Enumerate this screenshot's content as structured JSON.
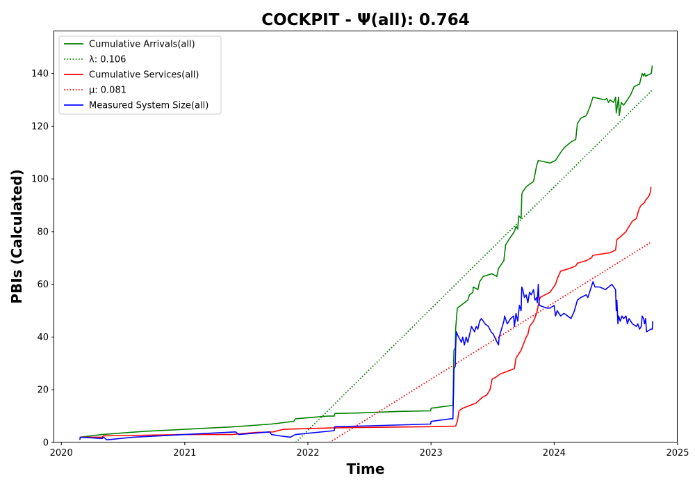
{
  "chart_data": {
    "type": "line",
    "title": "COCKPIT -  Ψ(all): 0.764",
    "xlabel": "Time",
    "ylabel": "PBIs (Calculated)",
    "xlim": [
      "2019-12-11",
      "2025-01-01"
    ],
    "ylim": [
      0,
      156
    ],
    "x_ticks": [
      "2020",
      "2021",
      "2022",
      "2023",
      "2024",
      "2025"
    ],
    "x_tick_dates": [
      "2020-01-01",
      "2021-01-01",
      "2022-01-01",
      "2023-01-01",
      "2024-01-01",
      "2025-01-01"
    ],
    "y_ticks": [
      0,
      20,
      40,
      60,
      80,
      100,
      120,
      140
    ],
    "grid": false,
    "legend_position": "upper-left",
    "series": [
      {
        "name": "Cumulative Arrivals(all)",
        "color": "#008000",
        "style": "solid",
        "points": [
          [
            "2020-02-25",
            2
          ],
          [
            "2020-05-01",
            3
          ],
          [
            "2020-09-01",
            4.2
          ],
          [
            "2021-01-01",
            5
          ],
          [
            "2021-06-01",
            6
          ],
          [
            "2021-09-15",
            7
          ],
          [
            "2021-11-20",
            8
          ],
          [
            "2021-11-25",
            9
          ],
          [
            "2022-03-01",
            10
          ],
          [
            "2022-03-20",
            10
          ],
          [
            "2022-03-22",
            11
          ],
          [
            "2022-06-01",
            11.2
          ],
          [
            "2022-10-01",
            11.8
          ],
          [
            "2022-12-31",
            12
          ],
          [
            "2023-01-01",
            13
          ],
          [
            "2023-03-01",
            14
          ],
          [
            "2023-03-07",
            14
          ],
          [
            "2023-03-08",
            20
          ],
          [
            "2023-03-09",
            30
          ],
          [
            "2023-03-10",
            35
          ],
          [
            "2023-03-14",
            36
          ],
          [
            "2023-03-15",
            43
          ],
          [
            "2023-03-20",
            51
          ],
          [
            "2023-04-10",
            53
          ],
          [
            "2023-04-20",
            54
          ],
          [
            "2023-04-25",
            56
          ],
          [
            "2023-05-05",
            57
          ],
          [
            "2023-05-06",
            59
          ],
          [
            "2023-05-20",
            58
          ],
          [
            "2023-05-25",
            61
          ],
          [
            "2023-06-05",
            63
          ],
          [
            "2023-06-30",
            64
          ],
          [
            "2023-07-15",
            63
          ],
          [
            "2023-07-20",
            66
          ],
          [
            "2023-08-05",
            69
          ],
          [
            "2023-08-10",
            75
          ],
          [
            "2023-08-20",
            77
          ],
          [
            "2023-09-05",
            80
          ],
          [
            "2023-09-10",
            82
          ],
          [
            "2023-09-15",
            81
          ],
          [
            "2023-09-18",
            86
          ],
          [
            "2023-09-25",
            85
          ],
          [
            "2023-09-27",
            94
          ],
          [
            "2023-09-29",
            95
          ],
          [
            "2023-10-10",
            97
          ],
          [
            "2023-10-20",
            98
          ],
          [
            "2023-11-01",
            99
          ],
          [
            "2023-11-10",
            105
          ],
          [
            "2023-11-15",
            107
          ],
          [
            "2023-12-20",
            106
          ],
          [
            "2024-01-05",
            107
          ],
          [
            "2024-01-20",
            110
          ],
          [
            "2024-02-01",
            112
          ],
          [
            "2024-02-20",
            114
          ],
          [
            "2024-03-05",
            115
          ],
          [
            "2024-03-10",
            121
          ],
          [
            "2024-03-20",
            123
          ],
          [
            "2024-04-05",
            124
          ],
          [
            "2024-04-15",
            127
          ],
          [
            "2024-04-25",
            131
          ],
          [
            "2024-05-30",
            130
          ],
          [
            "2024-06-05",
            130.5
          ],
          [
            "2024-06-10",
            129
          ],
          [
            "2024-06-15",
            130
          ],
          [
            "2024-06-25",
            129
          ],
          [
            "2024-07-01",
            131
          ],
          [
            "2024-07-03",
            125
          ],
          [
            "2024-07-10",
            131
          ],
          [
            "2024-07-12",
            124
          ],
          [
            "2024-07-18",
            129
          ],
          [
            "2024-07-25",
            128
          ],
          [
            "2024-08-05",
            130
          ],
          [
            "2024-08-15",
            132
          ],
          [
            "2024-08-25",
            135
          ],
          [
            "2024-09-10",
            136
          ],
          [
            "2024-09-18",
            140
          ],
          [
            "2024-09-22",
            139
          ],
          [
            "2024-09-25",
            140
          ],
          [
            "2024-09-28",
            139
          ],
          [
            "2024-10-15",
            140
          ],
          [
            "2024-10-18",
            143
          ]
        ]
      },
      {
        "name": "λ: 0.106",
        "color": "#008000",
        "style": "dotted",
        "points": [
          [
            "2021-11-26",
            0
          ],
          [
            "2024-10-20",
            134
          ]
        ]
      },
      {
        "name": "Cumulative Services(all)",
        "color": "#ff0000",
        "style": "solid",
        "points": [
          [
            "2020-02-25",
            2
          ],
          [
            "2020-05-01",
            2
          ],
          [
            "2020-05-05",
            2.5
          ],
          [
            "2021-01-01",
            3
          ],
          [
            "2021-05-01",
            3
          ],
          [
            "2021-05-20",
            3
          ],
          [
            "2021-08-01",
            3.8
          ],
          [
            "2021-09-20",
            4
          ],
          [
            "2021-10-20",
            5
          ],
          [
            "2022-03-01",
            5.5
          ],
          [
            "2022-06-01",
            5.7
          ],
          [
            "2022-12-31",
            6
          ],
          [
            "2023-03-15",
            6.2
          ],
          [
            "2023-03-20",
            8
          ],
          [
            "2023-03-25",
            12
          ],
          [
            "2023-04-05",
            13
          ],
          [
            "2023-04-25",
            14
          ],
          [
            "2023-05-15",
            15
          ],
          [
            "2023-06-01",
            17
          ],
          [
            "2023-06-15",
            18
          ],
          [
            "2023-06-25",
            20
          ],
          [
            "2023-07-01",
            24
          ],
          [
            "2023-07-15",
            25
          ],
          [
            "2023-07-25",
            26
          ],
          [
            "2023-08-15",
            27
          ],
          [
            "2023-09-05",
            28
          ],
          [
            "2023-09-10",
            32
          ],
          [
            "2023-09-15",
            33
          ],
          [
            "2023-09-25",
            35
          ],
          [
            "2023-10-01",
            37
          ],
          [
            "2023-10-10",
            40
          ],
          [
            "2023-10-15",
            41
          ],
          [
            "2023-10-20",
            44
          ],
          [
            "2023-11-01",
            46
          ],
          [
            "2023-11-10",
            49
          ],
          [
            "2023-11-15",
            52
          ],
          [
            "2023-11-20",
            55
          ],
          [
            "2023-12-20",
            57
          ],
          [
            "2024-01-05",
            60
          ],
          [
            "2024-01-10",
            62
          ],
          [
            "2024-01-20",
            65
          ],
          [
            "2024-02-15",
            66
          ],
          [
            "2024-03-05",
            67
          ],
          [
            "2024-03-10",
            68
          ],
          [
            "2024-04-05",
            69
          ],
          [
            "2024-04-20",
            70
          ],
          [
            "2024-04-25",
            71
          ],
          [
            "2024-06-15",
            72
          ],
          [
            "2024-07-01",
            73
          ],
          [
            "2024-07-05",
            77
          ],
          [
            "2024-07-15",
            78
          ],
          [
            "2024-08-01",
            80
          ],
          [
            "2024-08-10",
            82
          ],
          [
            "2024-08-20",
            84
          ],
          [
            "2024-09-01",
            85
          ],
          [
            "2024-09-05",
            87
          ],
          [
            "2024-09-10",
            89
          ],
          [
            "2024-09-15",
            90
          ],
          [
            "2024-09-25",
            91
          ],
          [
            "2024-09-28",
            92
          ],
          [
            "2024-10-05",
            93
          ],
          [
            "2024-10-10",
            94
          ],
          [
            "2024-10-12",
            95
          ],
          [
            "2024-10-14",
            97
          ]
        ]
      },
      {
        "name": "μ: 0.081",
        "color": "#ff0000",
        "style": "dotted",
        "points": [
          [
            "2022-03-06",
            0
          ],
          [
            "2024-10-14",
            76
          ]
        ]
      },
      {
        "name": "Measured System Size(all)",
        "color": "#0000ff",
        "style": "solid",
        "points": [
          [
            "2020-02-25",
            1
          ],
          [
            "2020-02-26",
            2
          ],
          [
            "2020-05-01",
            1.5
          ],
          [
            "2020-05-05",
            2
          ],
          [
            "2020-05-15",
            1
          ],
          [
            "2020-08-01",
            2
          ],
          [
            "2021-01-01",
            3
          ],
          [
            "2021-06-01",
            4
          ],
          [
            "2021-06-10",
            3
          ],
          [
            "2021-09-10",
            4
          ],
          [
            "2021-09-15",
            3
          ],
          [
            "2021-10-10",
            2.5
          ],
          [
            "2021-11-10",
            2
          ],
          [
            "2021-11-25",
            3
          ],
          [
            "2022-03-20",
            4.5
          ],
          [
            "2022-03-22",
            6
          ],
          [
            "2022-06-01",
            6.2
          ],
          [
            "2022-12-31",
            7
          ],
          [
            "2023-01-01",
            8
          ],
          [
            "2023-03-01",
            9
          ],
          [
            "2023-03-07",
            9
          ],
          [
            "2023-03-08",
            15
          ],
          [
            "2023-03-09",
            20
          ],
          [
            "2023-03-10",
            28
          ],
          [
            "2023-03-14",
            29
          ],
          [
            "2023-03-15",
            36
          ],
          [
            "2023-03-17",
            42
          ],
          [
            "2023-03-20",
            41
          ],
          [
            "2023-04-01",
            38
          ],
          [
            "2023-04-05",
            40
          ],
          [
            "2023-04-10",
            37
          ],
          [
            "2023-04-15",
            40
          ],
          [
            "2023-04-20",
            38
          ],
          [
            "2023-05-01",
            44
          ],
          [
            "2023-05-10",
            42
          ],
          [
            "2023-05-15",
            44
          ],
          [
            "2023-05-20",
            43
          ],
          [
            "2023-05-25",
            46
          ],
          [
            "2023-05-30",
            47
          ],
          [
            "2023-06-05",
            46
          ],
          [
            "2023-06-10",
            45
          ],
          [
            "2023-06-20",
            44
          ],
          [
            "2023-06-28",
            42
          ],
          [
            "2023-07-05",
            41
          ],
          [
            "2023-07-12",
            39
          ],
          [
            "2023-07-20",
            37
          ],
          [
            "2023-07-22",
            40
          ],
          [
            "2023-08-05",
            46
          ],
          [
            "2023-08-07",
            48
          ],
          [
            "2023-08-15",
            45
          ],
          [
            "2023-08-25",
            47
          ],
          [
            "2023-09-03",
            48
          ],
          [
            "2023-09-05",
            44
          ],
          [
            "2023-09-10",
            49
          ],
          [
            "2023-09-15",
            46
          ],
          [
            "2023-09-20",
            52
          ],
          [
            "2023-09-25",
            50
          ],
          [
            "2023-09-27",
            59
          ],
          [
            "2023-09-30",
            58
          ],
          [
            "2023-10-05",
            55
          ],
          [
            "2023-10-10",
            56
          ],
          [
            "2023-10-15",
            53
          ],
          [
            "2023-10-20",
            57
          ],
          [
            "2023-10-25",
            56
          ],
          [
            "2023-11-01",
            58
          ],
          [
            "2023-11-05",
            54
          ],
          [
            "2023-11-10",
            55
          ],
          [
            "2023-11-12",
            53
          ],
          [
            "2023-11-15",
            60
          ],
          [
            "2023-11-18",
            52
          ],
          [
            "2023-12-10",
            51
          ],
          [
            "2023-12-20",
            51
          ],
          [
            "2024-01-01",
            52
          ],
          [
            "2024-01-05",
            48
          ],
          [
            "2024-01-10",
            50
          ],
          [
            "2024-01-20",
            48
          ],
          [
            "2024-01-30",
            49
          ],
          [
            "2024-02-10",
            48
          ],
          [
            "2024-02-20",
            47
          ],
          [
            "2024-03-01",
            50
          ],
          [
            "2024-03-10",
            54
          ],
          [
            "2024-03-20",
            55
          ],
          [
            "2024-04-05",
            56
          ],
          [
            "2024-04-10",
            55
          ],
          [
            "2024-04-25",
            61
          ],
          [
            "2024-05-01",
            59
          ],
          [
            "2024-05-15",
            59
          ],
          [
            "2024-06-01",
            58
          ],
          [
            "2024-06-20",
            60
          ],
          [
            "2024-07-01",
            58
          ],
          [
            "2024-07-03",
            50
          ],
          [
            "2024-07-05",
            54
          ],
          [
            "2024-07-08",
            45
          ],
          [
            "2024-07-10",
            48
          ],
          [
            "2024-07-15",
            46
          ],
          [
            "2024-07-20",
            48
          ],
          [
            "2024-07-25",
            47
          ],
          [
            "2024-08-01",
            48
          ],
          [
            "2024-08-05",
            45
          ],
          [
            "2024-08-10",
            47
          ],
          [
            "2024-08-15",
            46
          ],
          [
            "2024-08-20",
            45
          ],
          [
            "2024-09-01",
            44
          ],
          [
            "2024-09-05",
            45
          ],
          [
            "2024-09-10",
            43
          ],
          [
            "2024-09-15",
            44
          ],
          [
            "2024-09-18",
            48
          ],
          [
            "2024-09-22",
            47
          ],
          [
            "2024-09-25",
            45
          ],
          [
            "2024-09-28",
            47
          ],
          [
            "2024-10-01",
            42
          ],
          [
            "2024-10-14",
            43
          ],
          [
            "2024-10-18",
            43
          ],
          [
            "2024-10-19",
            46
          ]
        ]
      }
    ],
    "legend": [
      {
        "label": "Cumulative Arrivals(all)",
        "color": "#008000",
        "style": "solid"
      },
      {
        "label": "λ: 0.106",
        "color": "#008000",
        "style": "dotted"
      },
      {
        "label": "Cumulative Services(all)",
        "color": "#ff0000",
        "style": "solid"
      },
      {
        "label": "μ: 0.081",
        "color": "#ff0000",
        "style": "dotted"
      },
      {
        "label": "Measured System Size(all)",
        "color": "#0000ff",
        "style": "solid"
      }
    ]
  }
}
